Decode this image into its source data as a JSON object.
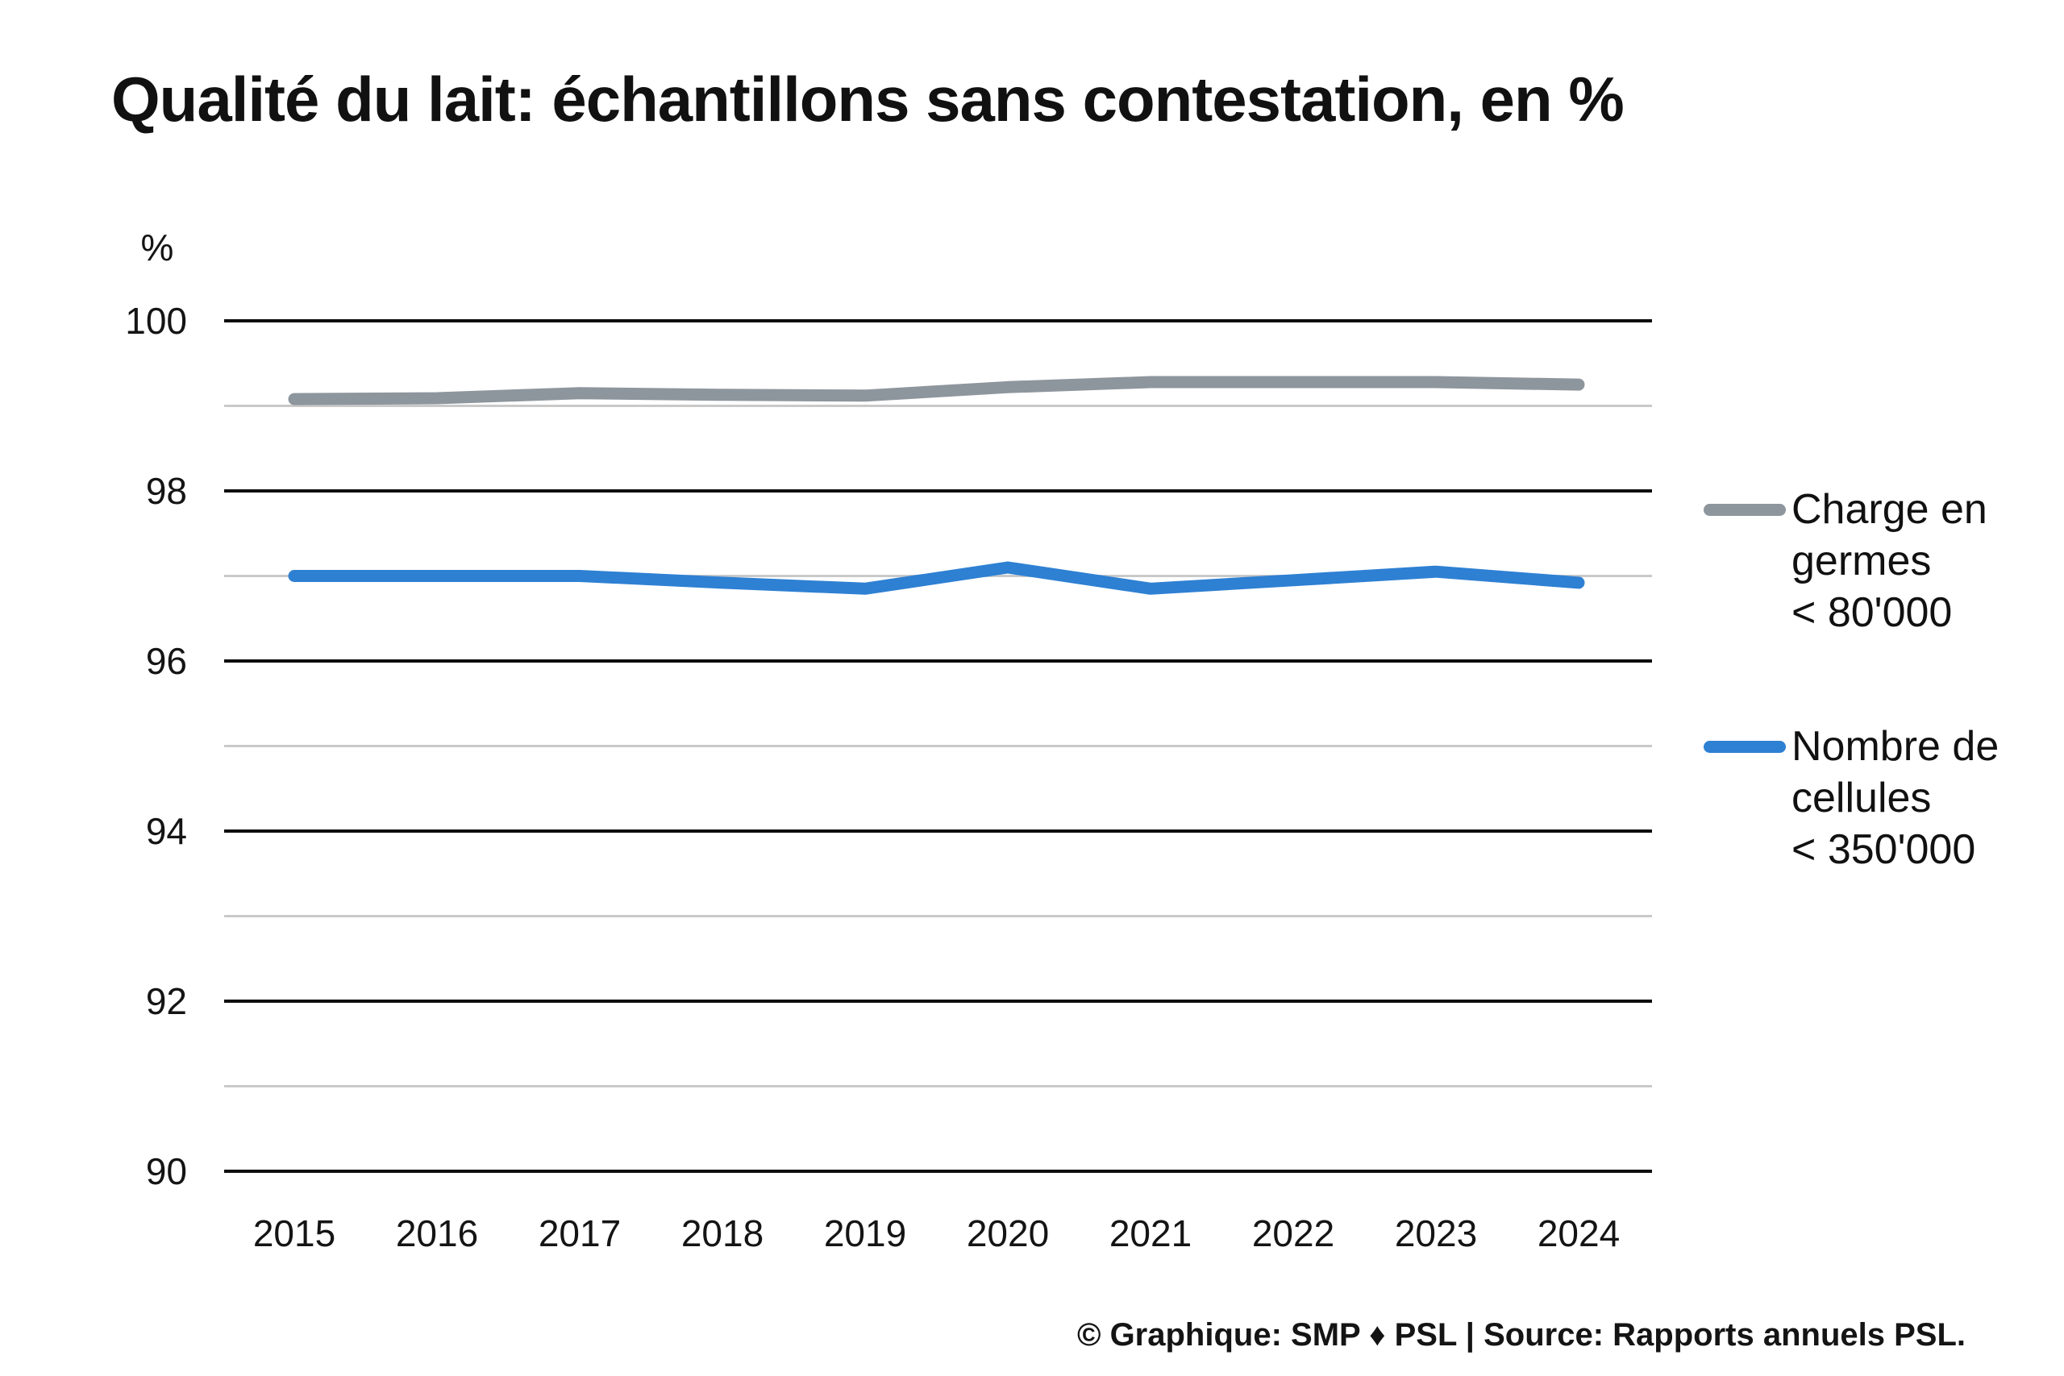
{
  "title": "Qualité du lait: échantillons sans contestation, en %",
  "y_axis_unit": "%",
  "footer": {
    "text": "© Graphique: SMP ♦ PSL | Source: Rapports annuels PSL."
  },
  "colors": {
    "germes": "#8e969d",
    "cellules": "#2e80d3",
    "grid_major": "#0d0d0d",
    "grid_minor": "#c9c9c9",
    "text": "#141414"
  },
  "legend": [
    {
      "series": "germes",
      "lines": [
        "Charge en",
        "germes",
        "< 80'000"
      ]
    },
    {
      "series": "cellules",
      "lines": [
        "Nombre de",
        "cellules",
        "< 350'000"
      ]
    }
  ],
  "chart_data": {
    "type": "line",
    "title": "Qualité du lait: échantillons sans contestation, en %",
    "x": [
      2015,
      2016,
      2017,
      2018,
      2019,
      2020,
      2021,
      2022,
      2023,
      2024
    ],
    "series": [
      {
        "name": "Charge en germes < 80'000",
        "key": "germes",
        "color": "#8e969d",
        "values": [
          99.08,
          99.09,
          99.15,
          99.13,
          99.12,
          99.22,
          99.28,
          99.28,
          99.28,
          99.25
        ]
      },
      {
        "name": "Nombre de cellules < 350'000",
        "key": "cellules",
        "color": "#2e80d3",
        "values": [
          97.0,
          97.0,
          97.0,
          96.92,
          96.85,
          97.1,
          96.85,
          96.95,
          97.05,
          96.92
        ]
      }
    ],
    "xlabel": "",
    "ylabel": "%",
    "ylim": [
      90,
      100
    ],
    "yticks_major": [
      100,
      98,
      96,
      94,
      92,
      90
    ],
    "yticks_minor": [
      99,
      97,
      95,
      93,
      91
    ],
    "grid": true,
    "legend_position": "right",
    "source": "© Graphique: SMP ♦ PSL | Source: Rapports annuels PSL."
  }
}
